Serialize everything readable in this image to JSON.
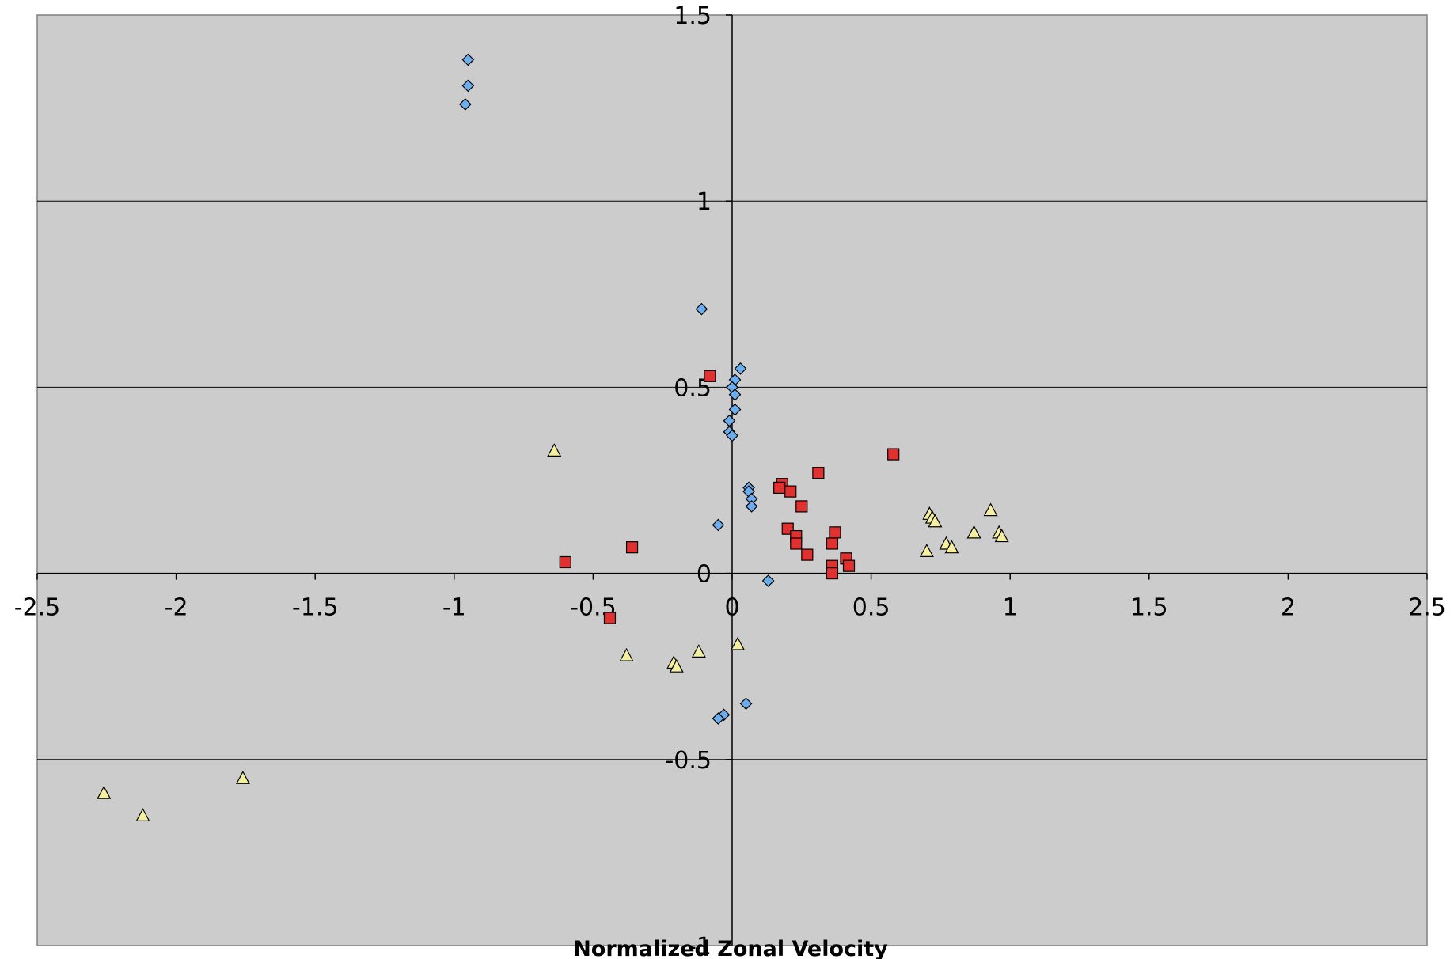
{
  "chart_data": {
    "type": "scatter",
    "title": "",
    "xlabel": "Normalized Zonal Velocity",
    "ylabel": "",
    "xlim": [
      -2.5,
      2.5
    ],
    "ylim": [
      -1,
      1.5
    ],
    "x_ticks": [
      -2.5,
      -2,
      -1.5,
      -1,
      -0.5,
      0,
      0.5,
      1,
      1.5,
      2,
      2.5
    ],
    "y_ticks": [
      -1,
      -0.5,
      0,
      0.5,
      1,
      1.5
    ],
    "x_tick_labels": [
      "-2.5",
      "-2",
      "-1.5",
      "-1",
      "-0.5",
      "0",
      "0.5",
      "1",
      "1.5",
      "2",
      "2.5"
    ],
    "y_tick_labels": [
      "-1",
      "-0.5",
      "0",
      "0.5",
      "1",
      "1.5"
    ],
    "grid": "horizontal",
    "legend": "none",
    "plot_background": "#cccccc",
    "series": [
      {
        "marker": "diamond",
        "color": "#6aaef0",
        "points": [
          [
            -0.95,
            1.38
          ],
          [
            -0.95,
            1.31
          ],
          [
            -0.96,
            1.26
          ],
          [
            -0.11,
            0.71
          ],
          [
            0.03,
            0.55
          ],
          [
            0.01,
            0.52
          ],
          [
            0.0,
            0.5
          ],
          [
            0.01,
            0.48
          ],
          [
            0.01,
            0.44
          ],
          [
            -0.01,
            0.41
          ],
          [
            -0.01,
            0.38
          ],
          [
            0.0,
            0.37
          ],
          [
            0.06,
            0.23
          ],
          [
            0.06,
            0.22
          ],
          [
            0.07,
            0.2
          ],
          [
            0.07,
            0.18
          ],
          [
            -0.05,
            0.13
          ],
          [
            0.13,
            -0.02
          ],
          [
            0.05,
            -0.35
          ],
          [
            -0.03,
            -0.38
          ],
          [
            -0.05,
            -0.39
          ]
        ]
      },
      {
        "marker": "square",
        "color": "#e03030",
        "points": [
          [
            -0.08,
            0.53
          ],
          [
            0.58,
            0.32
          ],
          [
            0.31,
            0.27
          ],
          [
            0.18,
            0.24
          ],
          [
            0.17,
            0.23
          ],
          [
            0.21,
            0.22
          ],
          [
            0.25,
            0.18
          ],
          [
            0.2,
            0.12
          ],
          [
            0.23,
            0.1
          ],
          [
            0.37,
            0.11
          ],
          [
            0.23,
            0.08
          ],
          [
            0.36,
            0.08
          ],
          [
            0.27,
            0.05
          ],
          [
            0.41,
            0.04
          ],
          [
            0.36,
            0.02
          ],
          [
            0.42,
            0.02
          ],
          [
            0.36,
            0.0
          ],
          [
            -0.6,
            0.03
          ],
          [
            -0.36,
            0.07
          ],
          [
            -0.44,
            -0.12
          ]
        ]
      },
      {
        "marker": "triangle",
        "color": "#f5f0a0",
        "points": [
          [
            -0.64,
            0.33
          ],
          [
            0.71,
            0.16
          ],
          [
            0.72,
            0.15
          ],
          [
            0.73,
            0.14
          ],
          [
            0.93,
            0.17
          ],
          [
            0.96,
            0.11
          ],
          [
            0.97,
            0.1
          ],
          [
            0.87,
            0.11
          ],
          [
            0.77,
            0.08
          ],
          [
            0.79,
            0.07
          ],
          [
            0.7,
            0.06
          ],
          [
            0.02,
            -0.19
          ],
          [
            -0.12,
            -0.21
          ],
          [
            -0.38,
            -0.22
          ],
          [
            -0.21,
            -0.24
          ],
          [
            -0.2,
            -0.25
          ],
          [
            -1.76,
            -0.55
          ],
          [
            -2.26,
            -0.59
          ],
          [
            -2.12,
            -0.65
          ]
        ]
      }
    ]
  }
}
